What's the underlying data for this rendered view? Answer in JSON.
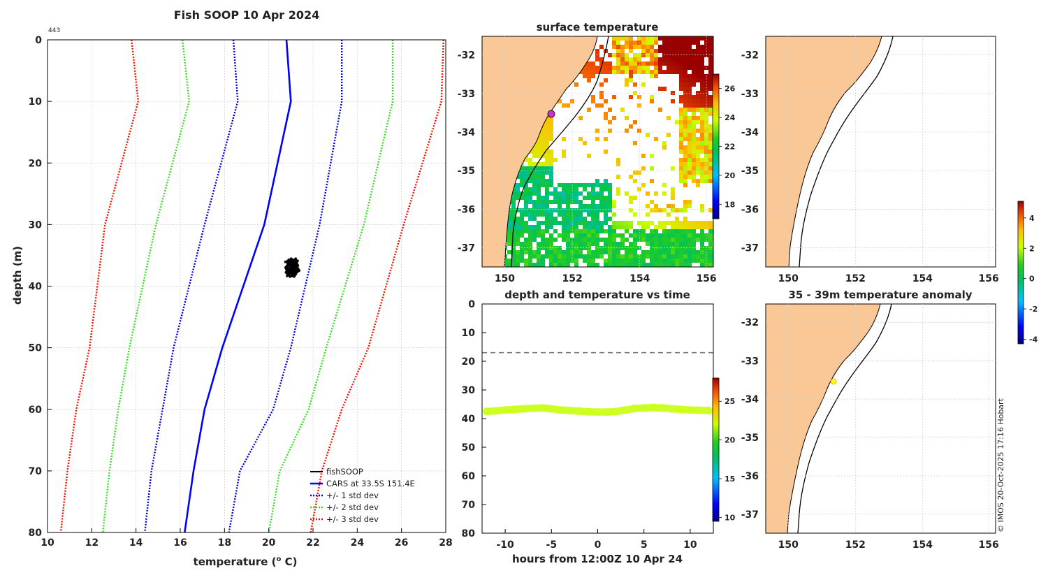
{
  "colors": {
    "land": "#f9c896",
    "grid": "#cfcfcf",
    "cars": "#0000ff",
    "std1": "#0000d0",
    "std2": "#33dd22",
    "std3": "#ee1100",
    "fish": "#000000",
    "marker": "#cc33cc",
    "depth_dots": "#ccff22",
    "anom_dot": "#ffff00",
    "dash": "#777777"
  },
  "profile": {
    "title": "Fish SOOP 10 Apr 2024",
    "id_label": "443",
    "xlabel": "temperature (",
    "xlabel_sup": "o",
    "xlabel_end": " C)",
    "ylabel": "depth (m)",
    "legend": [
      "fishSOOP",
      "CARS at 33.5S 151.4E",
      "+/- 1 std dev",
      "+/- 2 std dev",
      "+/- 3 std dev"
    ]
  },
  "sst": {
    "title": "surface temperature",
    "colorbar_ticks": [
      "26",
      "24",
      "22",
      "20",
      "18"
    ]
  },
  "depthtime": {
    "title": "depth and temperature vs time",
    "xlabel": "hours from 12:00Z 10 Apr 24",
    "colorbar_ticks": [
      "25",
      "20",
      "15",
      "10"
    ]
  },
  "anomaly": {
    "title": "35 - 39m temperature anomaly",
    "colorbar_ticks": [
      "4",
      "2",
      "0",
      "-2",
      "-4"
    ]
  },
  "copyright": "© IMOS 20-Oct-2025 17:16 Hobart",
  "chart_data": [
    {
      "type": "line",
      "title": "Fish SOOP 10 Apr 2024",
      "xlabel": "temperature (o C)",
      "ylabel": "depth (m)",
      "xlim": [
        10,
        28
      ],
      "ylim": [
        80,
        0
      ],
      "xticks": [
        "10",
        "12",
        "14",
        "16",
        "18",
        "20",
        "22",
        "24",
        "26",
        "28"
      ],
      "yticks": [
        "0",
        "10",
        "20",
        "30",
        "40",
        "50",
        "60",
        "70",
        "80"
      ],
      "depths": [
        0,
        10,
        30,
        50,
        60,
        70,
        80
      ],
      "series": [
        {
          "name": "CARS at 33.5S 151.4E",
          "style": "solid",
          "values": [
            20.8,
            21.0,
            19.8,
            17.9,
            17.1,
            16.6,
            16.2
          ]
        },
        {
          "name": "+/- 1 std dev (low)",
          "style": "dotted",
          "values": [
            18.4,
            18.6,
            17.1,
            15.7,
            15.2,
            14.7,
            14.4
          ]
        },
        {
          "name": "+/- 1 std dev (high)",
          "style": "dotted",
          "values": [
            23.3,
            23.3,
            22.3,
            21.0,
            20.2,
            18.7,
            18.2
          ]
        },
        {
          "name": "+/- 2 std dev (low)",
          "style": "dotted",
          "values": [
            16.1,
            16.4,
            14.9,
            13.7,
            13.2,
            12.8,
            12.5
          ]
        },
        {
          "name": "+/- 2 std dev (high)",
          "style": "dotted",
          "values": [
            25.6,
            25.6,
            24.3,
            22.6,
            21.8,
            20.5,
            20.0
          ]
        },
        {
          "name": "+/- 3 std dev (low)",
          "style": "dotted",
          "values": [
            13.8,
            14.1,
            12.6,
            11.9,
            11.3,
            10.9,
            10.6
          ]
        },
        {
          "name": "+/- 3 std dev (high)",
          "style": "dotted",
          "values": [
            27.9,
            27.8,
            26.1,
            24.5,
            23.3,
            22.4,
            21.9
          ]
        }
      ],
      "fishsoop": {
        "name": "fishSOOP",
        "temperature_range": [
          20.7,
          21.4
        ],
        "depth_range": [
          35.5,
          38.5
        ]
      }
    },
    {
      "type": "heatmap",
      "title": "surface temperature",
      "xticks": [
        "150",
        "152",
        "154",
        "156"
      ],
      "yticks": [
        "-32",
        "-33",
        "-34",
        "-35",
        "-36",
        "-37"
      ],
      "xlim": [
        149,
        156.5
      ],
      "ylim": [
        -37.5,
        -31.5
      ],
      "colorbar_range": [
        17,
        27
      ]
    },
    {
      "type": "scatter",
      "title": "depth and temperature vs time",
      "xlabel": "hours from 12:00Z 10 Apr 24",
      "xlim": [
        -12.5,
        12.5
      ],
      "ylim": [
        80,
        0
      ],
      "xticks": [
        "-10",
        "-5",
        "0",
        "5",
        "10"
      ],
      "yticks": [
        "0",
        "10",
        "20",
        "30",
        "40",
        "50",
        "60",
        "70",
        "80"
      ],
      "reference_depth": 17,
      "colorbar_range": [
        9.5,
        28
      ],
      "x": [
        -12,
        -11,
        -10,
        -9,
        -8,
        -7,
        -6,
        -5,
        -4,
        -3,
        -2,
        -1,
        0,
        1,
        2,
        3,
        4,
        5,
        6,
        7,
        8,
        9,
        10,
        11,
        12
      ],
      "y": [
        37.5,
        37.3,
        37.0,
        36.8,
        36.6,
        36.4,
        36.3,
        36.6,
        37.0,
        37.2,
        37.4,
        37.6,
        37.7,
        37.7,
        37.5,
        37.0,
        36.5,
        36.3,
        36.1,
        36.3,
        36.6,
        36.8,
        37.0,
        37.1,
        37.2
      ]
    },
    {
      "type": "heatmap",
      "title": "35 - 39m temperature anomaly",
      "xticks": [
        "150",
        "152",
        "154",
        "156"
      ],
      "yticks": [
        "-32",
        "-33",
        "-34",
        "-35",
        "-36",
        "-37"
      ],
      "colorbar_range": [
        -4,
        5
      ]
    }
  ]
}
